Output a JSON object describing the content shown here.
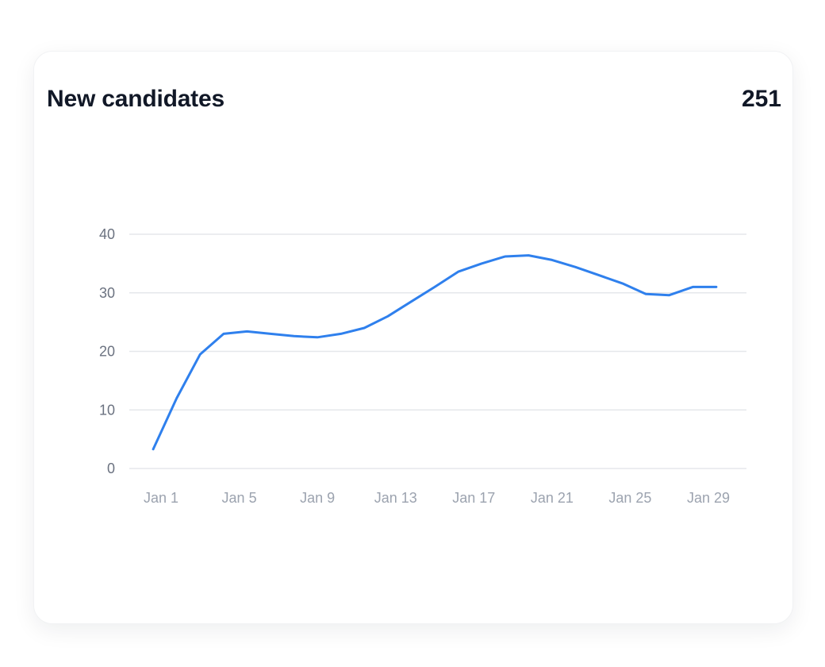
{
  "card": {
    "title": "New candidates",
    "total": "251"
  },
  "colors": {
    "line": "#2f80ed",
    "grid": "#e5e7eb",
    "y_tick": "#6b7280",
    "x_tick": "#9ca3af",
    "text": "#111827"
  },
  "chart_data": {
    "type": "line",
    "title": "",
    "xlabel": "",
    "ylabel": "",
    "ylim": [
      0,
      40
    ],
    "yticks": [
      0,
      10,
      20,
      30,
      40
    ],
    "xtick_labels": [
      "Jan 1",
      "Jan 5",
      "Jan 9",
      "Jan 13",
      "Jan 17",
      "Jan 21",
      "Jan 25",
      "Jan 29"
    ],
    "xtick_days": [
      1,
      5,
      9,
      13,
      17,
      21,
      25,
      29
    ],
    "grid": true,
    "legend": "none",
    "series": [
      {
        "x": [
          0.6,
          1.8,
          3.0,
          4.2,
          5.4,
          6.6,
          7.8,
          9.0,
          10.2,
          11.4,
          12.6,
          13.8,
          15.0,
          16.2,
          17.4,
          18.6,
          19.8,
          21.0,
          22.2,
          23.4,
          24.6,
          25.8,
          27.0,
          28.2,
          29.4
        ],
        "values": [
          3.3,
          12.0,
          19.5,
          23.0,
          23.4,
          23.0,
          22.6,
          22.4,
          23.0,
          24.0,
          26.0,
          28.5,
          31.0,
          33.6,
          35.0,
          36.2,
          36.4,
          35.6,
          34.4,
          33.0,
          31.6,
          29.8,
          29.6,
          31.0,
          31.0
        ]
      }
    ]
  }
}
